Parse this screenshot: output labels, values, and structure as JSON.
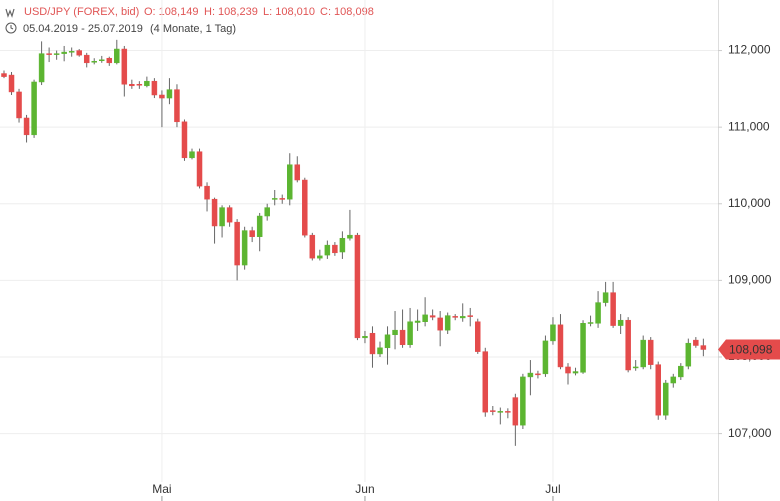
{
  "chart_data": {
    "type": "candlestick",
    "header": {
      "symbol": "USD/JPY (FOREX, bid)",
      "open": "O: 108,149",
      "high": "H: 108,239",
      "low": "L: 108,010",
      "close": "C: 108,098"
    },
    "subtitle": {
      "range": "05.04.2019 - 25.07.2019",
      "period": "(4 Monate, 1 Tag)"
    },
    "categories": [
      null,
      null,
      null,
      null,
      null,
      null,
      null,
      null,
      null,
      null,
      null,
      null,
      null,
      null,
      null,
      null,
      null,
      null,
      null,
      null,
      null,
      "Mai",
      null,
      null,
      null,
      null,
      null,
      null,
      null,
      null,
      null,
      null,
      null,
      null,
      null,
      null,
      null,
      null,
      null,
      null,
      null,
      null,
      null,
      null,
      null,
      null,
      null,
      null,
      "Jun",
      null,
      null,
      null,
      null,
      null,
      null,
      null,
      null,
      null,
      null,
      null,
      null,
      null,
      null,
      null,
      null,
      null,
      null,
      null,
      null,
      null,
      null,
      null,
      null,
      "Jul",
      null,
      null,
      null,
      null,
      null,
      null,
      null,
      null,
      null,
      null,
      null,
      null,
      null,
      null,
      null,
      null,
      null,
      null,
      null,
      null
    ],
    "open": [
      111.7,
      111.68,
      111.46,
      111.12,
      110.9,
      111.59,
      111.96,
      111.95,
      111.96,
      111.98,
      112.0,
      111.94,
      111.85,
      111.87,
      111.9,
      111.84,
      112.02,
      111.56,
      111.56,
      111.54,
      111.6,
      111.42,
      111.38,
      111.49,
      111.07,
      110.6,
      110.68,
      110.23,
      110.06,
      109.71,
      109.95,
      109.76,
      109.2,
      109.65,
      109.57,
      109.84,
      110.06,
      110.07,
      110.06,
      110.51,
      110.31,
      109.59,
      109.29,
      109.33,
      109.46,
      109.37,
      109.55,
      109.59,
      108.25,
      108.31,
      108.04,
      108.12,
      108.29,
      108.35,
      108.16,
      108.45,
      108.46,
      108.54,
      108.51,
      108.35,
      108.53,
      108.51,
      108.54,
      108.46,
      108.07,
      107.3,
      107.28,
      107.29,
      107.47,
      107.11,
      107.74,
      107.78,
      107.78,
      108.21,
      108.42,
      107.87,
      107.79,
      107.8,
      108.44,
      108.44,
      108.71,
      108.84,
      108.41,
      108.48,
      107.86,
      107.87,
      108.22,
      107.9,
      107.24,
      107.66,
      107.74,
      107.88,
      108.22,
      108.149
    ],
    "high": [
      111.74,
      111.72,
      111.5,
      111.16,
      111.62,
      112.12,
      112.04,
      112.0,
      112.06,
      112.04,
      112.02,
      111.97,
      111.9,
      111.93,
      111.92,
      112.14,
      112.06,
      111.62,
      111.6,
      111.66,
      111.64,
      111.48,
      111.64,
      111.56,
      111.1,
      110.72,
      110.72,
      110.28,
      110.08,
      109.98,
      109.98,
      109.8,
      109.7,
      109.7,
      109.88,
      110.0,
      110.18,
      110.12,
      110.66,
      110.62,
      110.34,
      109.62,
      109.4,
      109.52,
      109.5,
      109.64,
      109.92,
      109.62,
      108.34,
      108.4,
      108.2,
      108.4,
      108.6,
      108.62,
      108.64,
      108.62,
      108.78,
      108.62,
      108.6,
      108.58,
      108.56,
      108.7,
      108.64,
      108.5,
      108.12,
      107.36,
      107.34,
      107.33,
      107.52,
      107.78,
      107.96,
      107.82,
      108.28,
      108.52,
      108.56,
      107.92,
      107.86,
      108.48,
      108.54,
      108.86,
      108.98,
      108.98,
      108.56,
      108.52,
      107.96,
      108.28,
      108.26,
      107.94,
      107.7,
      107.78,
      107.92,
      108.24,
      108.26,
      108.239
    ],
    "low": [
      111.64,
      111.42,
      111.06,
      110.8,
      110.86,
      111.55,
      111.85,
      111.88,
      111.86,
      111.92,
      111.92,
      111.78,
      111.82,
      111.84,
      111.8,
      111.82,
      111.4,
      111.5,
      111.5,
      111.52,
      111.38,
      111.0,
      111.3,
      111.0,
      110.56,
      110.58,
      110.2,
      109.9,
      109.48,
      109.56,
      109.7,
      109.0,
      109.14,
      109.5,
      109.38,
      109.78,
      109.98,
      110.0,
      109.98,
      110.28,
      109.56,
      109.26,
      109.26,
      109.28,
      109.32,
      109.28,
      109.52,
      108.22,
      108.18,
      107.86,
      108.0,
      107.9,
      108.1,
      108.12,
      108.12,
      108.34,
      108.4,
      108.48,
      108.14,
      108.3,
      108.48,
      108.46,
      108.4,
      108.04,
      107.22,
      107.24,
      107.12,
      107.2,
      106.84,
      107.06,
      107.5,
      107.72,
      107.74,
      108.16,
      107.84,
      107.64,
      107.76,
      107.78,
      108.4,
      108.38,
      108.66,
      108.38,
      108.3,
      107.8,
      107.82,
      107.84,
      107.84,
      107.18,
      107.18,
      107.6,
      107.7,
      107.84,
      108.12,
      108.01
    ],
    "close": [
      111.66,
      111.46,
      111.12,
      110.9,
      111.59,
      111.96,
      111.95,
      111.96,
      111.98,
      111.99,
      111.94,
      111.84,
      111.86,
      111.88,
      111.84,
      112.02,
      111.56,
      111.54,
      111.55,
      111.6,
      111.42,
      111.38,
      111.49,
      111.07,
      110.6,
      110.68,
      110.23,
      110.06,
      109.71,
      109.95,
      109.76,
      109.2,
      109.65,
      109.57,
      109.84,
      109.95,
      110.07,
      110.06,
      110.51,
      110.31,
      109.59,
      109.29,
      109.32,
      109.46,
      109.36,
      109.55,
      109.59,
      108.25,
      108.27,
      108.04,
      108.12,
      108.29,
      108.35,
      108.16,
      108.46,
      108.47,
      108.55,
      108.52,
      108.35,
      108.54,
      108.52,
      108.53,
      108.53,
      108.07,
      107.28,
      107.29,
      107.29,
      107.28,
      107.11,
      107.74,
      107.79,
      107.77,
      108.21,
      108.42,
      107.87,
      107.79,
      107.81,
      108.44,
      108.45,
      108.71,
      108.84,
      108.41,
      108.48,
      107.83,
      107.87,
      108.22,
      107.9,
      107.24,
      107.66,
      107.74,
      107.88,
      108.18,
      108.15,
      108.098
    ],
    "up_color": "#5cb531",
    "down_color": "#e44b4b",
    "last_price": {
      "value": 108.098,
      "label": "108,098"
    },
    "ylim": [
      106.12,
      112.66
    ],
    "yticks": [
      {
        "value": 107,
        "label": "107,000"
      },
      {
        "value": 108,
        "label": "108,000"
      },
      {
        "value": 109,
        "label": "109,000"
      },
      {
        "value": 110,
        "label": "110,000"
      },
      {
        "value": 111,
        "label": "111,000"
      },
      {
        "value": 112,
        "label": "112,000"
      }
    ],
    "grid": true
  }
}
